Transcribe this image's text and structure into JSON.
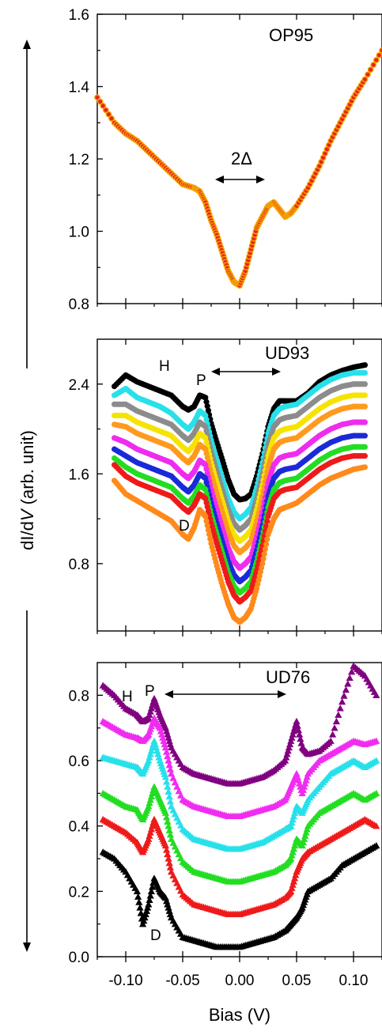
{
  "figure": {
    "ylabel_prefix": "dI/d",
    "ylabel_italic": "V",
    "ylabel_suffix": " (arb. unit)",
    "xlabel": "Bias (V)",
    "x_ticks": [
      "-0.10",
      "-0.05",
      "0.00",
      "0.05",
      "0.10"
    ]
  },
  "chart_data": [
    {
      "type": "scatter",
      "panel_label": "OP95",
      "annotations": {
        "gap": "2Δ"
      },
      "xlim": [
        -0.125,
        0.125
      ],
      "ylim": [
        0.8,
        1.6
      ],
      "y_ticks": [
        "0.8",
        "1.0",
        "1.2",
        "1.4",
        "1.6"
      ],
      "series": [
        {
          "color": "#e8231a",
          "edge": "#f5a300",
          "x": [
            -0.125,
            -0.11,
            -0.1,
            -0.09,
            -0.08,
            -0.07,
            -0.06,
            -0.05,
            -0.04,
            -0.035,
            -0.03,
            -0.025,
            -0.02,
            -0.015,
            -0.01,
            -0.005,
            0.0,
            0.005,
            0.01,
            0.015,
            0.02,
            0.025,
            0.03,
            0.035,
            0.04,
            0.045,
            0.05,
            0.06,
            0.07,
            0.08,
            0.09,
            0.1,
            0.11,
            0.125
          ],
          "y": [
            1.37,
            1.3,
            1.27,
            1.25,
            1.22,
            1.19,
            1.16,
            1.13,
            1.12,
            1.11,
            1.08,
            1.03,
            0.99,
            0.94,
            0.89,
            0.86,
            0.85,
            0.89,
            0.95,
            1.01,
            1.04,
            1.07,
            1.08,
            1.06,
            1.04,
            1.05,
            1.07,
            1.12,
            1.18,
            1.25,
            1.31,
            1.37,
            1.42,
            1.5
          ]
        }
      ]
    },
    {
      "type": "scatter",
      "panel_label": "UD93",
      "annotations": {
        "H": "H",
        "P": "P",
        "D": "D"
      },
      "xlim": [
        -0.125,
        0.125
      ],
      "ylim": [
        0.2,
        2.8
      ],
      "y_ticks": [
        "0.8",
        "1.6",
        "2.4"
      ],
      "x": [
        -0.11,
        -0.1,
        -0.09,
        -0.08,
        -0.07,
        -0.06,
        -0.05,
        -0.045,
        -0.04,
        -0.035,
        -0.03,
        -0.025,
        -0.02,
        -0.015,
        -0.01,
        -0.005,
        0.0,
        0.005,
        0.01,
        0.015,
        0.02,
        0.025,
        0.03,
        0.035,
        0.04,
        0.05,
        0.06,
        0.07,
        0.08,
        0.09,
        0.1,
        0.11
      ],
      "series": [
        {
          "color": "#000000",
          "y": [
            2.38,
            2.48,
            2.42,
            2.38,
            2.34,
            2.3,
            2.2,
            2.17,
            2.2,
            2.3,
            2.28,
            2.05,
            1.88,
            1.72,
            1.55,
            1.42,
            1.37,
            1.38,
            1.42,
            1.58,
            1.78,
            2.02,
            2.18,
            2.25,
            2.25,
            2.25,
            2.32,
            2.42,
            2.48,
            2.52,
            2.55,
            2.57
          ]
        },
        {
          "color": "#27e0ea",
          "y": [
            2.3,
            2.36,
            2.28,
            2.24,
            2.2,
            2.14,
            2.04,
            2.0,
            2.06,
            2.16,
            2.12,
            1.9,
            1.72,
            1.55,
            1.38,
            1.26,
            1.2,
            1.24,
            1.3,
            1.48,
            1.7,
            1.96,
            2.12,
            2.18,
            2.2,
            2.22,
            2.3,
            2.38,
            2.44,
            2.48,
            2.5,
            2.5
          ]
        },
        {
          "color": "#8c8c8c",
          "y": [
            2.22,
            2.22,
            2.16,
            2.12,
            2.08,
            2.04,
            1.94,
            1.9,
            1.96,
            2.06,
            2.02,
            1.8,
            1.62,
            1.45,
            1.28,
            1.16,
            1.1,
            1.14,
            1.2,
            1.38,
            1.6,
            1.86,
            2.02,
            2.08,
            2.1,
            2.12,
            2.2,
            2.28,
            2.34,
            2.38,
            2.4,
            2.4
          ]
        },
        {
          "color": "#f6e400",
          "y": [
            2.12,
            2.12,
            2.06,
            2.02,
            1.98,
            1.94,
            1.84,
            1.8,
            1.86,
            1.96,
            1.92,
            1.7,
            1.52,
            1.35,
            1.18,
            1.06,
            1.0,
            1.04,
            1.1,
            1.28,
            1.5,
            1.76,
            1.92,
            1.98,
            2.0,
            2.02,
            2.1,
            2.18,
            2.24,
            2.28,
            2.3,
            2.3
          ]
        },
        {
          "color": "#ff9a1e",
          "y": [
            2.04,
            2.02,
            1.96,
            1.92,
            1.88,
            1.84,
            1.74,
            1.7,
            1.76,
            1.86,
            1.82,
            1.6,
            1.42,
            1.25,
            1.08,
            0.96,
            0.9,
            0.94,
            1.0,
            1.18,
            1.4,
            1.66,
            1.82,
            1.88,
            1.9,
            1.92,
            2.0,
            2.08,
            2.14,
            2.18,
            2.2,
            2.2
          ]
        },
        {
          "color": "#ee2cee",
          "y": [
            1.92,
            1.88,
            1.82,
            1.78,
            1.74,
            1.7,
            1.6,
            1.56,
            1.62,
            1.72,
            1.68,
            1.46,
            1.28,
            1.11,
            0.94,
            0.82,
            0.76,
            0.8,
            0.86,
            1.04,
            1.26,
            1.52,
            1.68,
            1.74,
            1.76,
            1.78,
            1.86,
            1.94,
            2.0,
            2.04,
            2.06,
            2.06
          ]
        },
        {
          "color": "#1a2ad8",
          "y": [
            1.82,
            1.76,
            1.7,
            1.66,
            1.62,
            1.58,
            1.48,
            1.44,
            1.5,
            1.6,
            1.56,
            1.34,
            1.16,
            0.99,
            0.82,
            0.7,
            0.64,
            0.68,
            0.74,
            0.92,
            1.14,
            1.4,
            1.56,
            1.62,
            1.64,
            1.66,
            1.74,
            1.82,
            1.88,
            1.92,
            1.94,
            1.94
          ]
        },
        {
          "color": "#22dd22",
          "y": [
            1.74,
            1.66,
            1.6,
            1.56,
            1.52,
            1.48,
            1.38,
            1.34,
            1.4,
            1.5,
            1.46,
            1.24,
            1.06,
            0.89,
            0.72,
            0.6,
            0.54,
            0.58,
            0.64,
            0.82,
            1.04,
            1.3,
            1.46,
            1.52,
            1.54,
            1.56,
            1.64,
            1.72,
            1.78,
            1.82,
            1.84,
            1.84
          ]
        },
        {
          "color": "#ee1a1a",
          "y": [
            1.68,
            1.58,
            1.52,
            1.48,
            1.44,
            1.4,
            1.3,
            1.26,
            1.32,
            1.42,
            1.38,
            1.16,
            0.98,
            0.81,
            0.64,
            0.52,
            0.46,
            0.5,
            0.56,
            0.74,
            0.96,
            1.22,
            1.38,
            1.44,
            1.46,
            1.48,
            1.56,
            1.64,
            1.7,
            1.74,
            1.76,
            1.76
          ]
        },
        {
          "color": "#ff8a1a",
          "y": [
            1.54,
            1.42,
            1.36,
            1.3,
            1.24,
            1.18,
            1.06,
            1.02,
            1.12,
            1.28,
            1.22,
            0.98,
            0.78,
            0.6,
            0.44,
            0.32,
            0.28,
            0.32,
            0.4,
            0.58,
            0.8,
            1.06,
            1.2,
            1.28,
            1.3,
            1.34,
            1.42,
            1.5,
            1.56,
            1.6,
            1.64,
            1.66
          ]
        }
      ]
    },
    {
      "type": "scatter",
      "panel_label": "UD76",
      "annotations": {
        "H": "H",
        "P": "P",
        "D": "D"
      },
      "xlim": [
        -0.125,
        0.125
      ],
      "ylim": [
        0.0,
        0.9
      ],
      "y_ticks": [
        "0.0",
        "0.2",
        "0.4",
        "0.6",
        "0.8"
      ],
      "x": [
        -0.12,
        -0.11,
        -0.1,
        -0.09,
        -0.085,
        -0.08,
        -0.075,
        -0.07,
        -0.065,
        -0.06,
        -0.05,
        -0.04,
        -0.03,
        -0.02,
        -0.01,
        0.0,
        0.01,
        0.02,
        0.03,
        0.04,
        0.045,
        0.05,
        0.055,
        0.06,
        0.07,
        0.08,
        0.09,
        0.1,
        0.11,
        0.12
      ],
      "series": [
        {
          "color": "#800080",
          "y": [
            0.83,
            0.8,
            0.76,
            0.74,
            0.72,
            0.73,
            0.79,
            0.74,
            0.7,
            0.64,
            0.58,
            0.56,
            0.55,
            0.54,
            0.53,
            0.53,
            0.54,
            0.55,
            0.57,
            0.6,
            0.66,
            0.72,
            0.64,
            0.62,
            0.63,
            0.66,
            0.78,
            0.89,
            0.86,
            0.8
          ]
        },
        {
          "color": "#f02cf0",
          "y": [
            0.72,
            0.7,
            0.68,
            0.67,
            0.66,
            0.68,
            0.73,
            0.7,
            0.64,
            0.56,
            0.48,
            0.46,
            0.45,
            0.44,
            0.43,
            0.43,
            0.44,
            0.45,
            0.46,
            0.48,
            0.52,
            0.56,
            0.5,
            0.56,
            0.6,
            0.62,
            0.64,
            0.66,
            0.65,
            0.66
          ]
        },
        {
          "color": "#27e0ea",
          "y": [
            0.61,
            0.6,
            0.59,
            0.58,
            0.56,
            0.6,
            0.66,
            0.6,
            0.55,
            0.46,
            0.39,
            0.36,
            0.35,
            0.34,
            0.33,
            0.33,
            0.34,
            0.35,
            0.37,
            0.39,
            0.4,
            0.46,
            0.44,
            0.48,
            0.52,
            0.56,
            0.58,
            0.6,
            0.58,
            0.6
          ]
        },
        {
          "color": "#22dd22",
          "y": [
            0.5,
            0.48,
            0.46,
            0.45,
            0.42,
            0.46,
            0.52,
            0.48,
            0.44,
            0.36,
            0.29,
            0.26,
            0.25,
            0.24,
            0.23,
            0.23,
            0.24,
            0.25,
            0.26,
            0.28,
            0.3,
            0.36,
            0.34,
            0.4,
            0.44,
            0.46,
            0.48,
            0.5,
            0.48,
            0.5
          ]
        },
        {
          "color": "#ee1a1a",
          "y": [
            0.42,
            0.4,
            0.38,
            0.35,
            0.32,
            0.36,
            0.42,
            0.38,
            0.34,
            0.26,
            0.19,
            0.16,
            0.15,
            0.14,
            0.13,
            0.13,
            0.14,
            0.15,
            0.16,
            0.18,
            0.2,
            0.26,
            0.3,
            0.32,
            0.34,
            0.36,
            0.38,
            0.4,
            0.42,
            0.4
          ]
        },
        {
          "color": "#000000",
          "y": [
            0.32,
            0.3,
            0.26,
            0.2,
            0.1,
            0.16,
            0.24,
            0.2,
            0.18,
            0.12,
            0.06,
            0.05,
            0.04,
            0.03,
            0.03,
            0.03,
            0.04,
            0.05,
            0.06,
            0.08,
            0.1,
            0.12,
            0.15,
            0.2,
            0.22,
            0.24,
            0.28,
            0.3,
            0.32,
            0.34
          ]
        }
      ]
    }
  ]
}
